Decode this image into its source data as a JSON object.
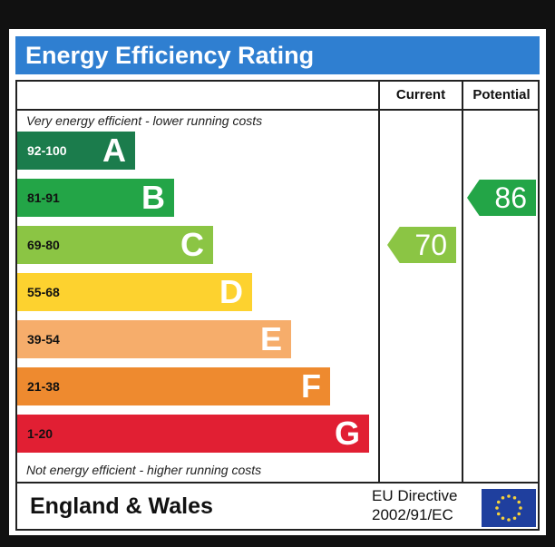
{
  "title": "Energy Efficiency Rating",
  "columns": {
    "current": "Current",
    "potential": "Potential"
  },
  "notes": {
    "top": "Very energy efficient - lower running costs",
    "bottom": "Not energy efficient - higher running costs"
  },
  "chart_data": {
    "type": "bar",
    "categories": [
      "A",
      "B",
      "C",
      "D",
      "E",
      "F",
      "G"
    ],
    "bands": [
      {
        "letter": "A",
        "range": "92-100",
        "color": "#1b7c4c",
        "text_color": "#ffffff"
      },
      {
        "letter": "B",
        "range": "81-91",
        "color": "#23a547",
        "text_color": "#111111"
      },
      {
        "letter": "C",
        "range": "69-80",
        "color": "#8bc544",
        "text_color": "#111111"
      },
      {
        "letter": "D",
        "range": "55-68",
        "color": "#fdd22f",
        "text_color": "#111111"
      },
      {
        "letter": "E",
        "range": "39-54",
        "color": "#f6ad6b",
        "text_color": "#111111"
      },
      {
        "letter": "F",
        "range": "21-38",
        "color": "#ee8a2f",
        "text_color": "#111111"
      },
      {
        "letter": "G",
        "range": "1-20",
        "color": "#e11f33",
        "text_color": "#111111"
      }
    ],
    "current": {
      "value": 70,
      "band": "C",
      "color": "#8bc544"
    },
    "potential": {
      "value": 86,
      "band": "B",
      "color": "#23a547"
    }
  },
  "footer": {
    "region": "England & Wales",
    "directive_line1": "EU Directive",
    "directive_line2": "2002/91/EC"
  },
  "icons": {
    "flag": "eu-flag-icon"
  },
  "colors": {
    "title_bar": "#2f7fd1",
    "flag_blue": "#1f3f9e",
    "star": "#f6d13c"
  }
}
